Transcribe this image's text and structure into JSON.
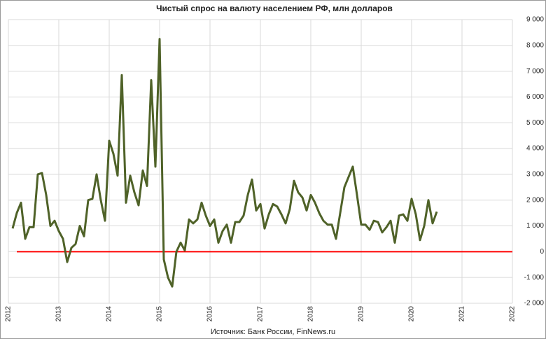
{
  "chart_data": {
    "type": "line",
    "title": "Чистый спрос на валюту населением РФ, млн долларов",
    "source": "Источник: Банк России, FinNews.ru",
    "x": [
      "2012-02",
      "2012-03",
      "2012-04",
      "2012-05",
      "2012-06",
      "2012-07",
      "2012-08",
      "2012-09",
      "2012-10",
      "2012-11",
      "2012-12",
      "2013-01",
      "2013-02",
      "2013-03",
      "2013-04",
      "2013-05",
      "2013-06",
      "2013-07",
      "2013-08",
      "2013-09",
      "2013-10",
      "2013-11",
      "2013-12",
      "2014-01",
      "2014-02",
      "2014-03",
      "2014-04",
      "2014-05",
      "2014-06",
      "2014-07",
      "2014-08",
      "2014-09",
      "2014-10",
      "2014-11",
      "2014-12",
      "2015-01",
      "2015-02",
      "2015-03",
      "2015-04",
      "2015-05",
      "2015-06",
      "2015-07",
      "2015-08",
      "2015-09",
      "2015-10",
      "2015-11",
      "2015-12",
      "2016-01",
      "2016-02",
      "2016-03",
      "2016-04",
      "2016-05",
      "2016-06",
      "2016-07",
      "2016-08",
      "2016-09",
      "2016-10",
      "2016-11",
      "2016-12",
      "2017-01",
      "2017-02",
      "2017-03",
      "2017-04",
      "2017-05",
      "2017-06",
      "2017-07",
      "2017-08",
      "2017-09",
      "2017-10",
      "2017-11",
      "2017-12",
      "2018-01",
      "2018-02",
      "2018-03",
      "2018-04",
      "2018-05",
      "2018-06",
      "2018-07",
      "2018-08",
      "2018-09",
      "2018-10",
      "2018-11",
      "2018-12",
      "2019-01",
      "2019-02",
      "2019-03",
      "2019-04",
      "2019-05",
      "2019-06",
      "2019-07",
      "2019-08",
      "2019-09",
      "2019-10",
      "2019-11",
      "2019-12",
      "2020-01",
      "2020-02",
      "2020-03",
      "2020-04",
      "2020-05",
      "2020-06",
      "2020-07"
    ],
    "series": [
      {
        "name": "Чистый спрос",
        "color": "#4f6228",
        "values": [
          900,
          1500,
          1900,
          500,
          950,
          950,
          3000,
          3050,
          2200,
          1000,
          1200,
          800,
          500,
          -400,
          150,
          300,
          1000,
          600,
          2000,
          2050,
          3000,
          2000,
          1200,
          4300,
          3800,
          2950,
          6850,
          1900,
          2950,
          2300,
          1800,
          3150,
          2550,
          6650,
          3300,
          8250,
          -300,
          -1000,
          -1350,
          0,
          350,
          50,
          1250,
          1100,
          1250,
          1900,
          1400,
          1000,
          1250,
          350,
          800,
          1050,
          350,
          1150,
          1150,
          1400,
          2200,
          2800,
          1600,
          1850,
          900,
          1450,
          1850,
          1750,
          1450,
          1100,
          1650,
          2750,
          2300,
          2100,
          1600,
          2200,
          1900,
          1500,
          1200,
          1050,
          1050,
          500,
          1500,
          2500,
          2900,
          3300,
          2200,
          1050,
          1050,
          850,
          1200,
          1150,
          750,
          950,
          1200,
          350,
          1400,
          1450,
          1200,
          2050,
          1450,
          450,
          1000,
          2000,
          1100,
          1550
        ]
      }
    ],
    "zero_line": {
      "value": 0,
      "x": [
        "2012-03",
        "2022-01"
      ],
      "color": "#ff0000"
    },
    "xlim": [
      2012,
      2022
    ],
    "xticks": [
      2012,
      2013,
      2014,
      2015,
      2016,
      2017,
      2018,
      2019,
      2020,
      2021,
      2022
    ],
    "ylim": [
      -2000,
      9000
    ],
    "yticks": [
      {
        "value": -2000,
        "label": "-2 000"
      },
      {
        "value": -1000,
        "label": "-1 000"
      },
      0,
      {
        "value": 1000,
        "label": "1 000"
      },
      {
        "value": 2000,
        "label": "2 000"
      },
      {
        "value": 3000,
        "label": "3 000"
      },
      {
        "value": 4000,
        "label": "4 000"
      },
      {
        "value": 5000,
        "label": "5 000"
      },
      {
        "value": 6000,
        "label": "6 000"
      },
      {
        "value": 7000,
        "label": "7 000"
      },
      {
        "value": 8000,
        "label": "8 000"
      },
      {
        "value": 9000,
        "label": "9 000"
      }
    ],
    "grid": true
  }
}
